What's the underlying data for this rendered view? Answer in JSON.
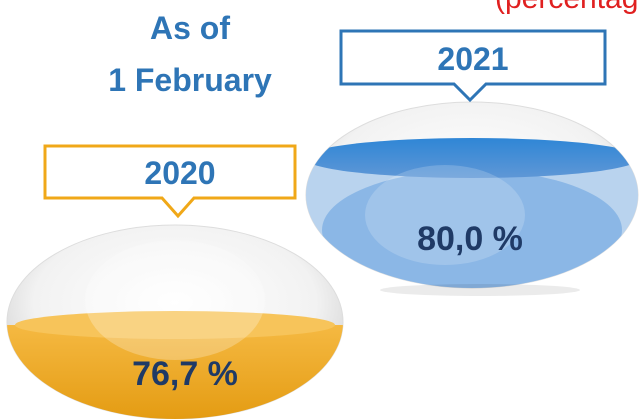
{
  "header": {
    "note": "(percentag",
    "line1": "As of",
    "line2": "1 February"
  },
  "bowls": [
    {
      "year": "2020",
      "label": "76,7 %"
    },
    {
      "year": "2021",
      "label": "80,0 %"
    }
  ]
}
